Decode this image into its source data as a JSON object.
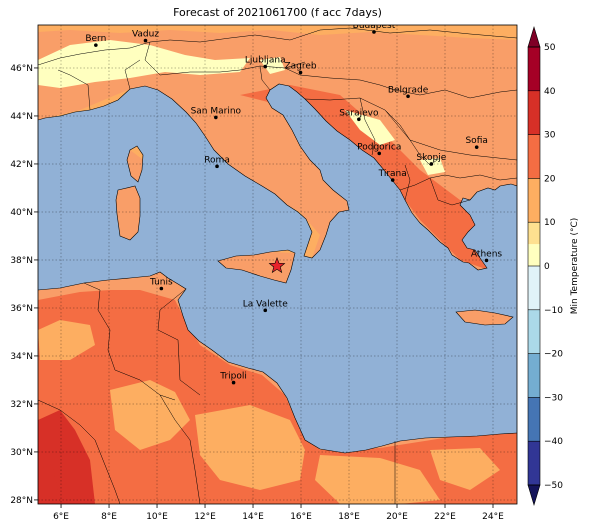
{
  "title": "Forecast of 2021061700 (f acc 7days)",
  "colorbar": {
    "label": "Min Temperature (°C)",
    "ticks": [
      50,
      40,
      30,
      20,
      10,
      0,
      -10,
      -20,
      -30,
      -40,
      -50
    ],
    "levels": [
      {
        "from": 40,
        "to": 50,
        "color": "#a50026"
      },
      {
        "from": 30,
        "to": 40,
        "color": "#d73027"
      },
      {
        "from": 25,
        "to": 30,
        "color": "#f46d43"
      },
      {
        "from": 20,
        "to": 25,
        "color": "#f46d43"
      },
      {
        "from": 15,
        "to": 20,
        "color": "#fdae61"
      },
      {
        "from": 10,
        "to": 15,
        "color": "#fdae61"
      },
      {
        "from": 5,
        "to": 10,
        "color": "#fee090"
      },
      {
        "from": 0,
        "to": 5,
        "color": "#ffffbf"
      },
      {
        "from": -10,
        "to": 0,
        "color": "#e0f3f8"
      },
      {
        "from": -20,
        "to": -10,
        "color": "#abd9e9"
      },
      {
        "from": -30,
        "to": -20,
        "color": "#74add1"
      },
      {
        "from": -40,
        "to": -30,
        "color": "#4575b4"
      },
      {
        "from": -50,
        "to": -40,
        "color": "#313695"
      }
    ]
  },
  "axes": {
    "lon_ticks": [
      "6°E",
      "8°E",
      "10°E",
      "12°E",
      "14°E",
      "16°E",
      "18°E",
      "20°E",
      "22°E",
      "24°E"
    ],
    "lat_ticks": [
      "28°N",
      "30°N",
      "32°N",
      "34°N",
      "36°N",
      "38°N",
      "40°N",
      "42°N",
      "44°N",
      "46°N"
    ]
  },
  "cities": [
    {
      "name": "Bern",
      "lon": 7.45,
      "lat": 46.95
    },
    {
      "name": "Vaduz",
      "lon": 9.52,
      "lat": 47.14
    },
    {
      "name": "Budapest",
      "lon": 19.04,
      "lat": 47.5
    },
    {
      "name": "Ljubljana",
      "lon": 14.51,
      "lat": 46.06
    },
    {
      "name": "Zagreb",
      "lon": 15.98,
      "lat": 45.81
    },
    {
      "name": "Belgrade",
      "lon": 20.46,
      "lat": 44.82
    },
    {
      "name": "San Marino",
      "lon": 12.45,
      "lat": 43.94
    },
    {
      "name": "Sarajevo",
      "lon": 18.41,
      "lat": 43.86
    },
    {
      "name": "Sofia",
      "lon": 23.32,
      "lat": 42.7
    },
    {
      "name": "Podgorica",
      "lon": 19.26,
      "lat": 42.44
    },
    {
      "name": "Skopje",
      "lon": 21.43,
      "lat": 42.0
    },
    {
      "name": "Roma",
      "lon": 12.5,
      "lat": 41.9
    },
    {
      "name": "Tirana",
      "lon": 19.82,
      "lat": 41.33
    },
    {
      "name": "Athens",
      "lon": 23.73,
      "lat": 37.98
    },
    {
      "name": "Tunis",
      "lon": 10.18,
      "lat": 36.81
    },
    {
      "name": "La Valette",
      "lon": 14.51,
      "lat": 35.9
    },
    {
      "name": "Tripoli",
      "lon": 13.19,
      "lat": 32.89
    }
  ]
}
